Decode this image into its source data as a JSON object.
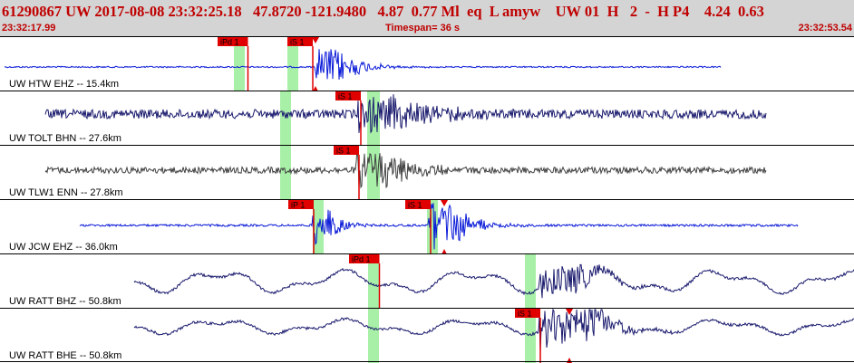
{
  "header": {
    "title": "61290867 UW 2017-08-08 23:32:25.18   47.8720 -121.9480   4.87  0.77 Ml  eq  L amyw    UW 01  H   2  -  H P4    4.24  0.63",
    "time_start": "23:32:17.99",
    "timespan": "Timespan=  36 s",
    "time_end": "23:32:53.54"
  },
  "colors": {
    "header_bg": "#d4d4d4",
    "header_text": "#c00000",
    "pick_red": "#e00000",
    "window_green": "#a8f0a8",
    "trace_blue": "#0a1ad8",
    "trace_navy": "#1a1a6e",
    "trace_gray": "#404040"
  },
  "panels": [
    {
      "label": "UW HTW EHZ -- 15.4km",
      "color": "#0a1ad8",
      "picks": [
        {
          "label": "iPd 1",
          "x": 240,
          "arrow": false
        },
        {
          "label": "iS 1",
          "x": 317,
          "arrow": false
        },
        {
          "label": "",
          "x": 348,
          "arrow": true
        }
      ],
      "windows": [
        [
          258,
          270
        ],
        [
          317,
          329
        ]
      ]
    },
    {
      "label": "UW TOLT BHN -- 27.6km",
      "color": "#1a1a6e",
      "picks": [
        {
          "label": "iS 1",
          "x": 370,
          "arrow": false
        }
      ],
      "windows": [
        [
          309,
          321
        ],
        [
          405,
          419
        ]
      ]
    },
    {
      "label": "UW TLW1 ENN -- 27.8km",
      "color": "#404040",
      "picks": [
        {
          "label": "iS 1",
          "x": 368,
          "arrow": false
        }
      ],
      "windows": [
        [
          309,
          321
        ],
        [
          405,
          419
        ]
      ]
    },
    {
      "label": "UW JCW EHZ -- 36.0km",
      "color": "#0a1ad8",
      "picks": [
        {
          "label": "iP 1",
          "x": 318,
          "arrow": false
        },
        {
          "label": "iS 1",
          "x": 447,
          "arrow": false
        },
        {
          "label": "",
          "x": 490,
          "arrow": true
        }
      ],
      "windows": [
        [
          345,
          357
        ],
        [
          471,
          483
        ]
      ]
    },
    {
      "label": "UW RATT BHZ -- 50.8km",
      "color": "#1a1a6e",
      "picks": [
        {
          "label": "iPd 1",
          "x": 385,
          "arrow": false
        }
      ],
      "windows": [
        [
          406,
          418
        ],
        [
          579,
          591
        ]
      ]
    },
    {
      "label": "UW RATT BHE -- 50.8km",
      "color": "#1a1a6e",
      "picks": [
        {
          "label": "iS 1",
          "x": 568,
          "arrow": false
        },
        {
          "label": "",
          "x": 628,
          "arrow": true
        }
      ],
      "windows": [
        [
          406,
          418
        ],
        [
          579,
          591
        ]
      ]
    }
  ]
}
